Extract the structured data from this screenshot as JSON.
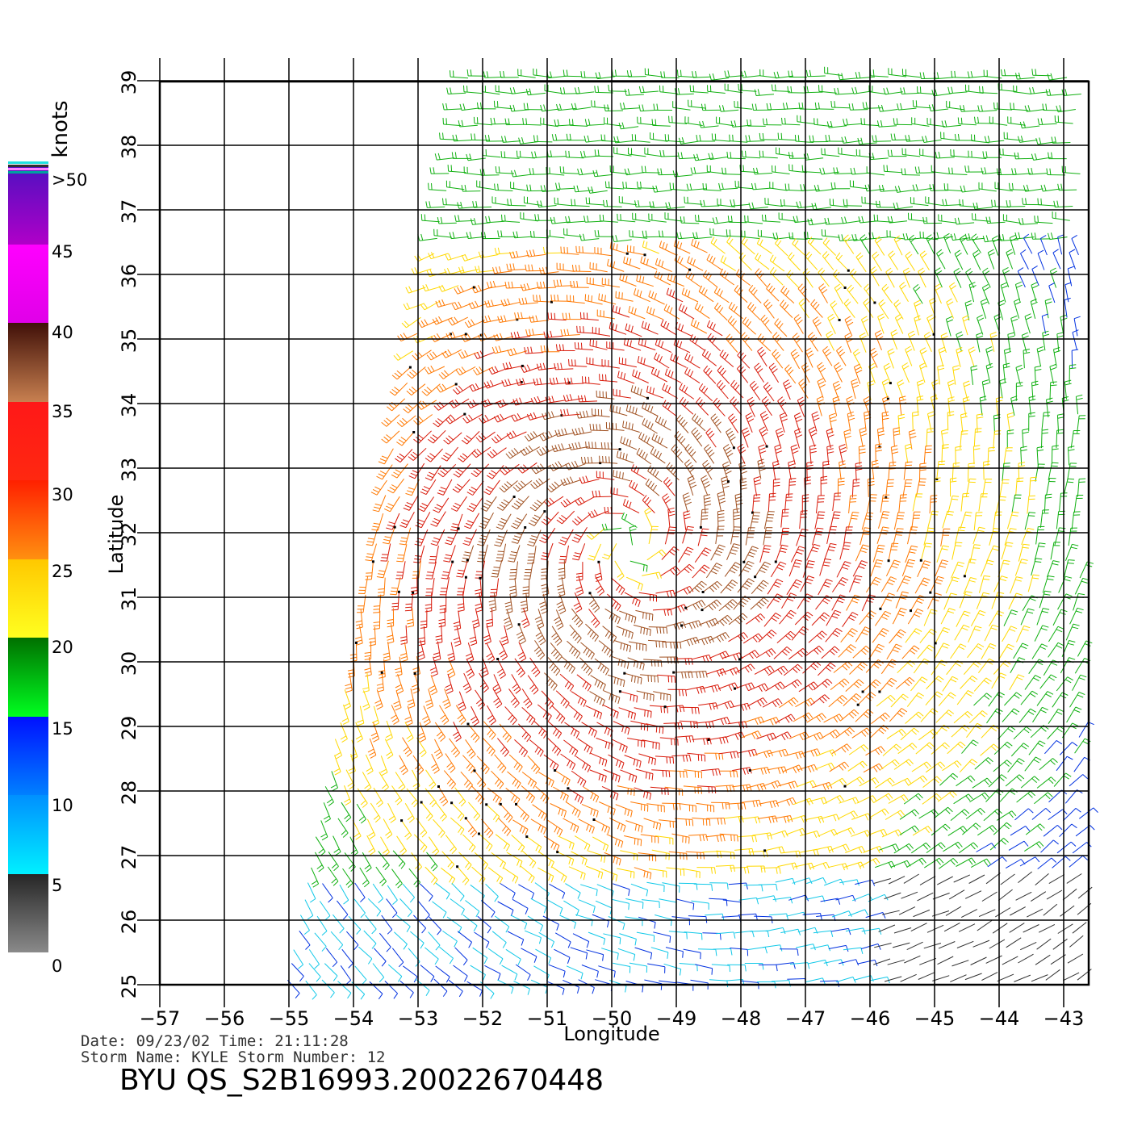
{
  "map": {
    "xlabel": "Longitude",
    "ylabel": "Latitude",
    "lon_ticks": [
      -57,
      -56,
      -55,
      -54,
      -53,
      -52,
      -51,
      -50,
      -49,
      -48,
      -47,
      -46,
      -45,
      -44,
      -43
    ],
    "lat_ticks": [
      25,
      26,
      27,
      28,
      29,
      30,
      31,
      32,
      33,
      34,
      35,
      36,
      37,
      38,
      39
    ],
    "lon_range": [
      -57,
      -42.6
    ],
    "lat_range": [
      25,
      39
    ],
    "storm_center": {
      "lon": -49.7,
      "lat": 31.8
    },
    "grid": true
  },
  "colorbar": {
    "unit": "knots",
    "labels": [
      ">50",
      "45",
      "40",
      "35",
      "30",
      "25",
      "20",
      "15",
      "10",
      "5",
      "0"
    ],
    "bins": [
      {
        "min": 0,
        "max": 5,
        "color_top": "#262626",
        "color_bottom": "#8a8a8a"
      },
      {
        "min": 5,
        "max": 10,
        "color_top": "#0090ff",
        "color_bottom": "#00f0ff"
      },
      {
        "min": 10,
        "max": 15,
        "color_top": "#0010ff",
        "color_bottom": "#0080ff"
      },
      {
        "min": 15,
        "max": 20,
        "color_top": "#007000",
        "color_bottom": "#00ff20"
      },
      {
        "min": 20,
        "max": 25,
        "color_top": "#ffc800",
        "color_bottom": "#ffff20"
      },
      {
        "min": 25,
        "max": 30,
        "color_top": "#ff2000",
        "color_bottom": "#ff9010"
      },
      {
        "min": 30,
        "max": 35,
        "color_top": "#ff1818",
        "color_bottom": "#ff2810"
      },
      {
        "min": 35,
        "max": 40,
        "color_top": "#401008",
        "color_bottom": "#c88050"
      },
      {
        "min": 40,
        "max": 45,
        "color_top": "#ff00ff",
        "color_bottom": "#e000e8"
      },
      {
        "min": 45,
        "max": 50,
        "color_top": "#5010c0",
        "color_bottom": "#b000c8"
      }
    ]
  },
  "footer": {
    "line1": "Date: 09/23/02   Time: 21:11:28",
    "line2": "Storm  Name:  KYLE    Storm  Number:  12",
    "line3": "BYU  QS_S2B16993.20022670448"
  }
}
